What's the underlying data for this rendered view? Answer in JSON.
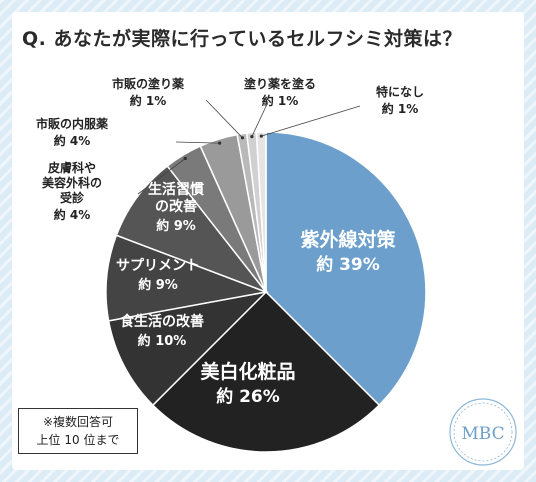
{
  "title": "Q. あなたが実際に行っているセルフシミ対策は？",
  "note": [
    "※複数回答可",
    "上位 10 位まで"
  ],
  "logo_text": "MBC",
  "chart_data": {
    "type": "pie",
    "title": "Q. あなたが実際に行っているセルフシミ対策は？",
    "value_prefix": "約 ",
    "value_suffix": "%",
    "slices": [
      {
        "label": [
          "紫外線対策"
        ],
        "value": 39,
        "color": "#6c9fcb"
      },
      {
        "label": [
          "美白化粧品"
        ],
        "value": 26,
        "color": "#222222"
      },
      {
        "label": [
          "食生活の改善"
        ],
        "value": 10,
        "color": "#333333"
      },
      {
        "label": [
          "サプリメント"
        ],
        "value": 9,
        "color": "#444444"
      },
      {
        "label": [
          "生活習慣",
          "の改善"
        ],
        "value": 9,
        "color": "#555555"
      },
      {
        "label": [
          "皮膚科や",
          "美容外科の",
          "受診"
        ],
        "value": 4,
        "color": "#7a7a7a"
      },
      {
        "label": [
          "市販の内服薬"
        ],
        "value": 4,
        "color": "#9a9a9a"
      },
      {
        "label": [
          "市販の塗り薬"
        ],
        "value": 1,
        "color": "#b9b9b9"
      },
      {
        "label": [
          "塗り薬を塗る"
        ],
        "value": 1,
        "color": "#d0d0d0"
      },
      {
        "label": [
          "特になし"
        ],
        "value": 1,
        "color": "#e4e4e4"
      }
    ]
  }
}
